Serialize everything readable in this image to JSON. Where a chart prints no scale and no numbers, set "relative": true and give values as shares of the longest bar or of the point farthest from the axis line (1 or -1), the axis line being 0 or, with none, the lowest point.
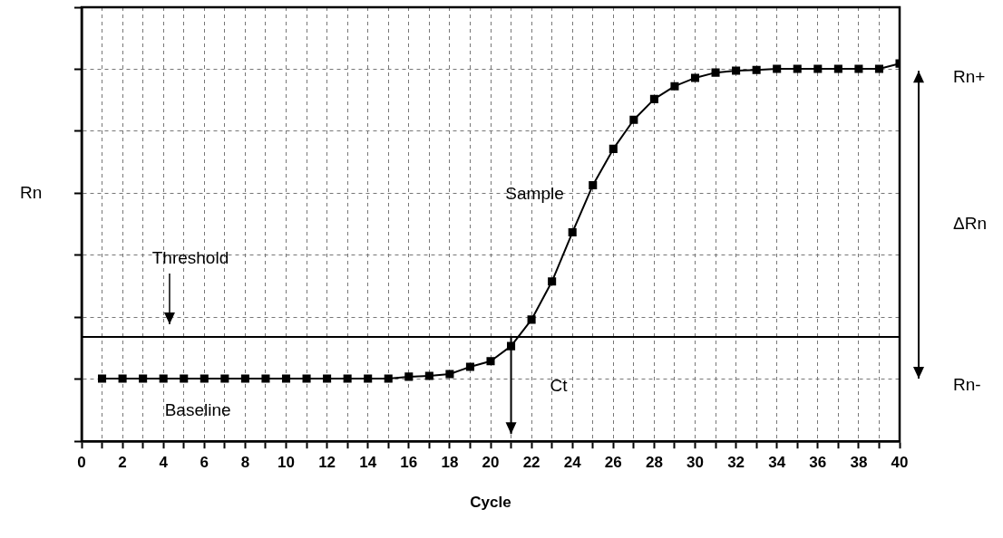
{
  "chart_data": {
    "type": "line",
    "relative": true,
    "xlabel": "Cycle",
    "ylabel": "Rn",
    "x": [
      1,
      2,
      3,
      4,
      5,
      6,
      7,
      8,
      9,
      10,
      11,
      12,
      13,
      14,
      15,
      16,
      17,
      18,
      19,
      20,
      21,
      22,
      23,
      24,
      25,
      26,
      27,
      28,
      29,
      30,
      31,
      32,
      33,
      34,
      35,
      36,
      37,
      38,
      39,
      40
    ],
    "series": [
      {
        "name": "Sample",
        "color": "#000000",
        "values": [
          0.166,
          0.166,
          0.166,
          0.166,
          0.166,
          0.166,
          0.166,
          0.166,
          0.166,
          0.166,
          0.166,
          0.166,
          0.166,
          0.166,
          0.166,
          0.171,
          0.173,
          0.178,
          0.197,
          0.212,
          0.252,
          0.322,
          0.423,
          0.553,
          0.678,
          0.774,
          0.851,
          0.906,
          0.94,
          0.962,
          0.976,
          0.981,
          0.983,
          0.986,
          0.986,
          0.986,
          0.986,
          0.986,
          0.986,
          1
        ]
      }
    ],
    "xlim": [
      0,
      40
    ],
    "xticks": [
      0,
      {
        "value": 1,
        "label": null
      },
      2,
      {
        "value": 3,
        "label": null
      },
      4,
      {
        "value": 5,
        "label": null
      },
      6,
      {
        "value": 7,
        "label": null
      },
      8,
      {
        "value": 9,
        "label": null
      },
      10,
      {
        "value": 11,
        "label": null
      },
      12,
      {
        "value": 13,
        "label": null
      },
      14,
      {
        "value": 15,
        "label": null
      },
      16,
      {
        "value": 17,
        "label": null
      },
      18,
      {
        "value": 19,
        "label": null
      },
      20,
      {
        "value": 21,
        "label": null
      },
      22,
      {
        "value": 23,
        "label": null
      },
      24,
      {
        "value": 25,
        "label": null
      },
      26,
      {
        "value": 27,
        "label": null
      },
      28,
      {
        "value": 29,
        "label": null
      },
      30,
      {
        "value": 31,
        "label": null
      },
      32,
      {
        "value": 33,
        "label": null
      },
      34,
      {
        "value": 35,
        "label": null
      },
      36,
      {
        "value": 37,
        "label": null
      },
      38,
      {
        "value": 39,
        "label": null
      },
      40
    ],
    "ref_lines": [
      {
        "axis": "y",
        "value": 0.276,
        "color": "#000000"
      }
    ],
    "annotations": [
      "Threshold",
      "Baseline",
      "Ct",
      "Rn+",
      "ΔRn",
      "Rn-"
    ],
    "grid": true,
    "legend": false,
    "marker": "square",
    "line_style": "solid"
  }
}
